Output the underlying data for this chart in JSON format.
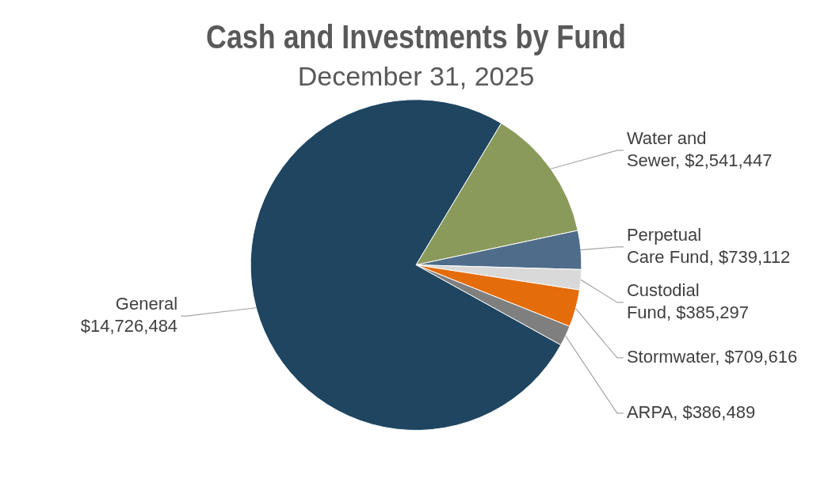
{
  "chart_data": {
    "type": "pie",
    "title": "Cash and Investments by Fund",
    "subtitle": "December 31, 2025",
    "categories": [
      "Water and Sewer",
      "Perpetual Care Fund",
      "Custodial Fund",
      "Stormwater",
      "ARPA",
      "General"
    ],
    "values": [
      2541447,
      739112,
      385297,
      709616,
      386489,
      14726484
    ],
    "value_labels": [
      "$2,541,447",
      "$739,112",
      "$385,297",
      "$709,616",
      "$386,489",
      "$14,726,484"
    ],
    "colors": [
      "#8a9a5b",
      "#4f6d8a",
      "#d9d9d9",
      "#e46c0a",
      "#7f7f7f",
      "#1f4560"
    ],
    "legend": false
  }
}
